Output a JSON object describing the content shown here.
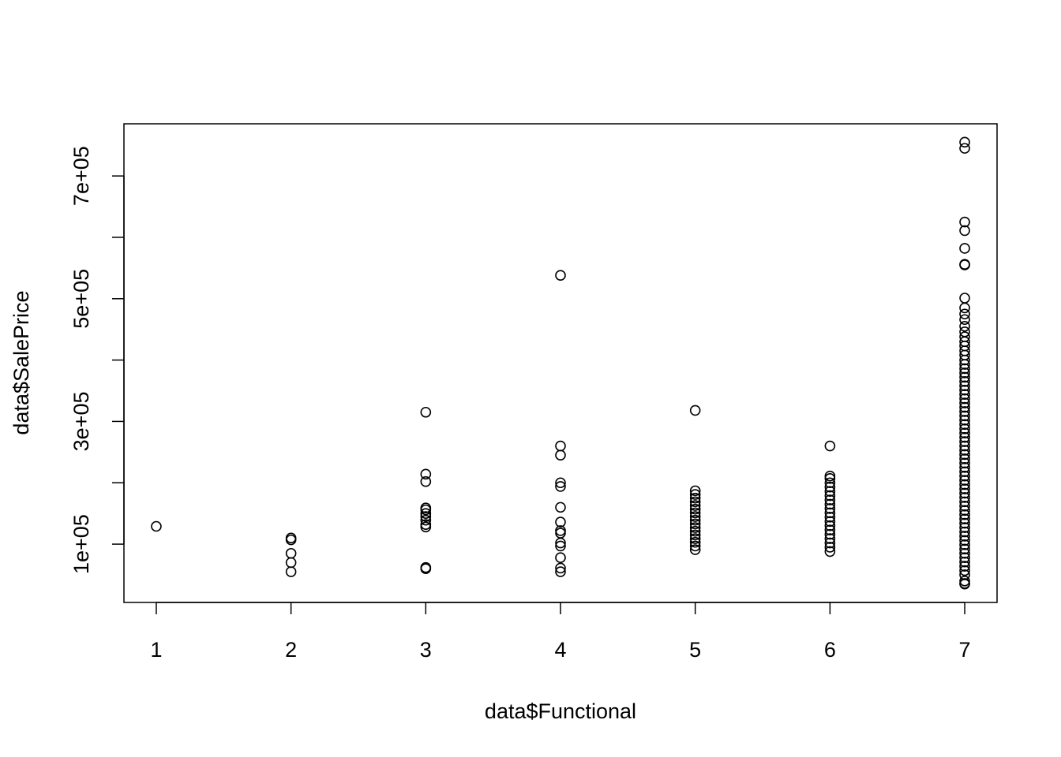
{
  "chart_data": {
    "type": "scatter",
    "title": "",
    "xlabel": "data$Functional",
    "ylabel": "data$SalePrice",
    "xlim": [
      0.76,
      7.24
    ],
    "ylim": [
      5000,
      785000
    ],
    "x_ticks": [
      1,
      2,
      3,
      4,
      5,
      6,
      7
    ],
    "x_tick_labels": [
      "1",
      "2",
      "3",
      "4",
      "5",
      "6",
      "7"
    ],
    "y_ticks": [
      100000,
      200000,
      300000,
      400000,
      500000,
      600000,
      700000
    ],
    "y_tick_labels": [
      "1e+05",
      "",
      "3e+05",
      "",
      "5e+05",
      "",
      "7e+05"
    ],
    "grid": false,
    "legend": "none",
    "series": [
      {
        "points": [
          [
            1,
            129000
          ],
          [
            2,
            110000
          ],
          [
            2,
            107000
          ],
          [
            2,
            85000
          ],
          [
            2,
            70000
          ],
          [
            2,
            55000
          ],
          [
            3,
            315000
          ],
          [
            3,
            214000
          ],
          [
            3,
            202000
          ],
          [
            3,
            159000
          ],
          [
            3,
            156000
          ],
          [
            3,
            150000
          ],
          [
            3,
            145000
          ],
          [
            3,
            139000
          ],
          [
            3,
            132000
          ],
          [
            3,
            128000
          ],
          [
            3,
            62000
          ],
          [
            3,
            60000
          ],
          [
            4,
            538000
          ],
          [
            4,
            260000
          ],
          [
            4,
            245000
          ],
          [
            4,
            200000
          ],
          [
            4,
            194000
          ],
          [
            4,
            160000
          ],
          [
            4,
            136000
          ],
          [
            4,
            122000
          ],
          [
            4,
            118000
          ],
          [
            4,
            102000
          ],
          [
            4,
            97000
          ],
          [
            4,
            78000
          ],
          [
            4,
            61000
          ],
          [
            4,
            55000
          ],
          [
            5,
            318000
          ],
          [
            5,
            187000
          ],
          [
            5,
            181000
          ],
          [
            5,
            175000
          ],
          [
            5,
            169000
          ],
          [
            5,
            163000
          ],
          [
            5,
            157000
          ],
          [
            5,
            151000
          ],
          [
            5,
            145000
          ],
          [
            5,
            139000
          ],
          [
            5,
            133000
          ],
          [
            5,
            127000
          ],
          [
            5,
            121000
          ],
          [
            5,
            115000
          ],
          [
            5,
            109000
          ],
          [
            5,
            103000
          ],
          [
            5,
            97000
          ],
          [
            5,
            91000
          ],
          [
            6,
            260000
          ],
          [
            6,
            211000
          ],
          [
            6,
            207000
          ],
          [
            6,
            200000
          ],
          [
            6,
            193000
          ],
          [
            6,
            186000
          ],
          [
            6,
            179000
          ],
          [
            6,
            172000
          ],
          [
            6,
            165000
          ],
          [
            6,
            158000
          ],
          [
            6,
            151000
          ],
          [
            6,
            144000
          ],
          [
            6,
            137000
          ],
          [
            6,
            130000
          ],
          [
            6,
            123000
          ],
          [
            6,
            116000
          ],
          [
            6,
            109000
          ],
          [
            6,
            102000
          ],
          [
            6,
            95000
          ],
          [
            6,
            88000
          ],
          [
            7,
            755000
          ],
          [
            7,
            745000
          ],
          [
            7,
            625000
          ],
          [
            7,
            611000
          ],
          [
            7,
            582000
          ],
          [
            7,
            556000
          ],
          [
            7,
            555000
          ],
          [
            7,
            501000
          ],
          [
            7,
            485000
          ],
          [
            7,
            475000
          ],
          [
            7,
            466000
          ],
          [
            7,
            455000
          ],
          [
            7,
            446000
          ],
          [
            7,
            438000
          ],
          [
            7,
            430000
          ],
          [
            7,
            423000
          ],
          [
            7,
            415000
          ],
          [
            7,
            408000
          ],
          [
            7,
            400000
          ],
          [
            7,
            393000
          ],
          [
            7,
            386000
          ],
          [
            7,
            379000
          ],
          [
            7,
            372000
          ],
          [
            7,
            365000
          ],
          [
            7,
            358000
          ],
          [
            7,
            351000
          ],
          [
            7,
            344000
          ],
          [
            7,
            337000
          ],
          [
            7,
            330000
          ],
          [
            7,
            323000
          ],
          [
            7,
            316000
          ],
          [
            7,
            309000
          ],
          [
            7,
            302000
          ],
          [
            7,
            295000
          ],
          [
            7,
            288000
          ],
          [
            7,
            281000
          ],
          [
            7,
            274000
          ],
          [
            7,
            267000
          ],
          [
            7,
            260000
          ],
          [
            7,
            253000
          ],
          [
            7,
            246000
          ],
          [
            7,
            239000
          ],
          [
            7,
            232000
          ],
          [
            7,
            225000
          ],
          [
            7,
            218000
          ],
          [
            7,
            211000
          ],
          [
            7,
            204000
          ],
          [
            7,
            197000
          ],
          [
            7,
            190000
          ],
          [
            7,
            183000
          ],
          [
            7,
            176000
          ],
          [
            7,
            169000
          ],
          [
            7,
            162000
          ],
          [
            7,
            155000
          ],
          [
            7,
            148000
          ],
          [
            7,
            141000
          ],
          [
            7,
            134000
          ],
          [
            7,
            127000
          ],
          [
            7,
            120000
          ],
          [
            7,
            113000
          ],
          [
            7,
            106000
          ],
          [
            7,
            99000
          ],
          [
            7,
            92000
          ],
          [
            7,
            85000
          ],
          [
            7,
            78000
          ],
          [
            7,
            71000
          ],
          [
            7,
            64000
          ],
          [
            7,
            57000
          ],
          [
            7,
            50000
          ],
          [
            7,
            40000
          ],
          [
            7,
            36000
          ],
          [
            7,
            35000
          ]
        ]
      }
    ]
  }
}
